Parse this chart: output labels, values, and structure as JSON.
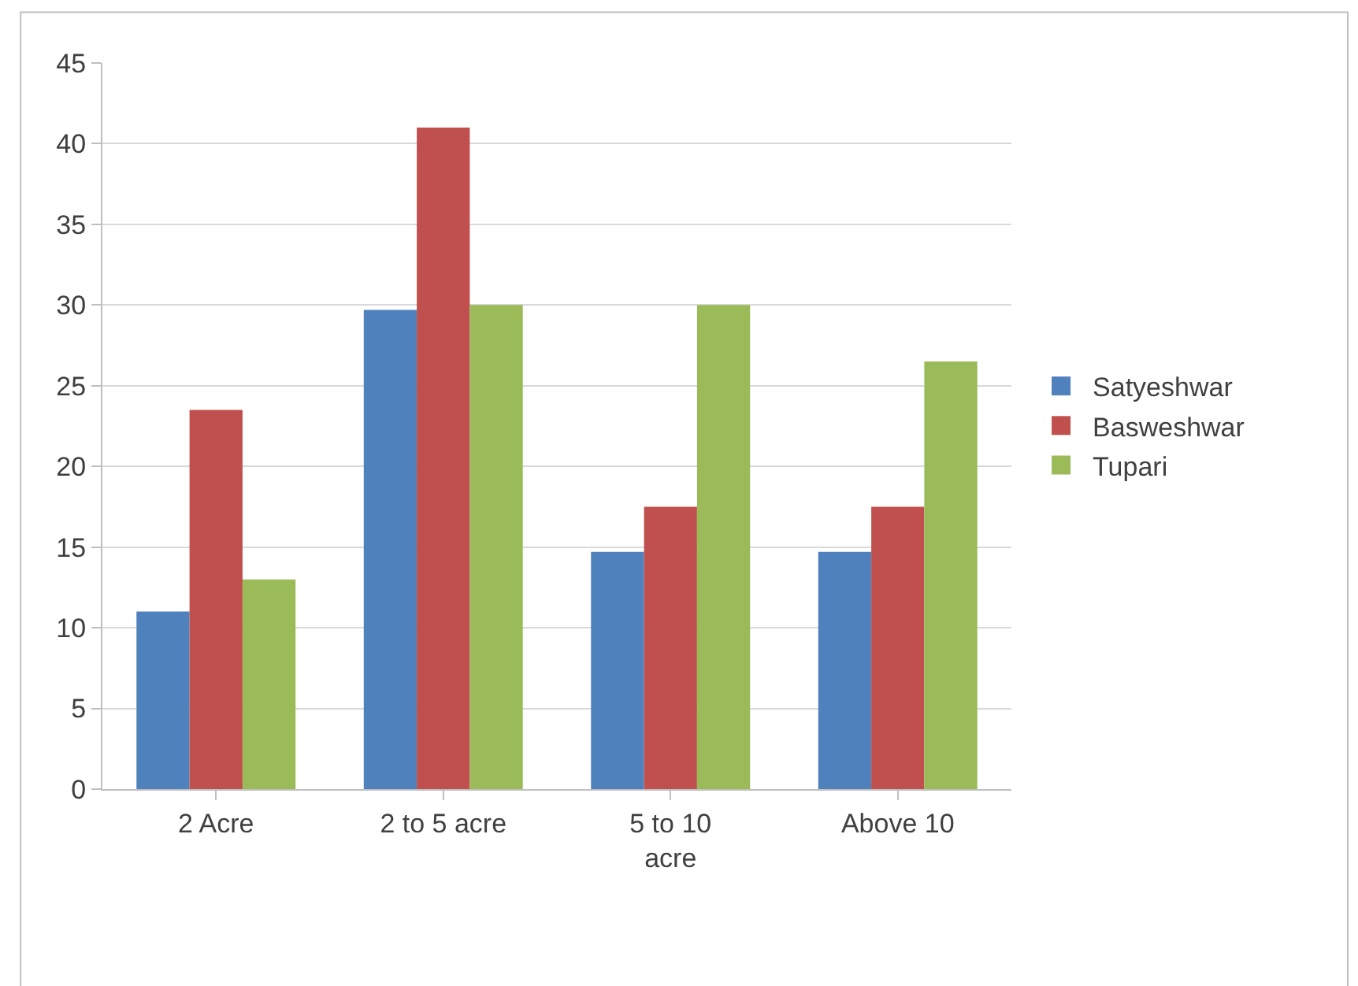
{
  "chart_data": {
    "type": "bar",
    "categories": [
      "2 Acre",
      "2 to 5 acre",
      "5 to 10 acre",
      "Above 10"
    ],
    "series": [
      {
        "name": "Satyeshwar",
        "color": "#4f81bd",
        "values": [
          11,
          29.7,
          14.7,
          14.7
        ]
      },
      {
        "name": "Basweshwar",
        "color": "#c0504d",
        "values": [
          23.5,
          41,
          17.5,
          17.5
        ]
      },
      {
        "name": "Tupari",
        "color": "#9bbb59",
        "values": [
          13,
          30,
          30,
          26.5
        ]
      }
    ],
    "ylim": [
      0,
      45
    ],
    "yticks": [
      0,
      5,
      10,
      15,
      20,
      25,
      30,
      35,
      40,
      45
    ],
    "grid": "y",
    "legend": "right"
  }
}
